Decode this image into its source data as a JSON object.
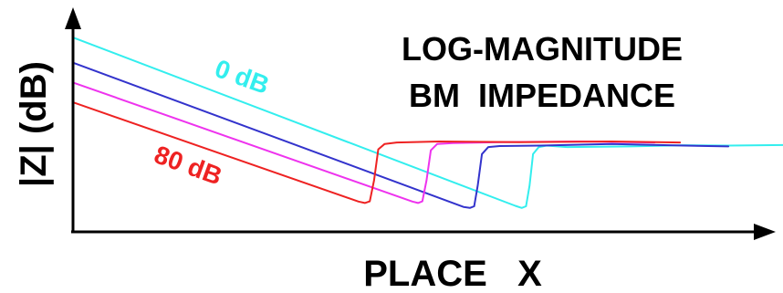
{
  "chart_data": {
    "type": "line",
    "title_lines": [
      "LOG-MAGNITUDE",
      "BM  IMPEDANCE"
    ],
    "xlabel": "PLACE   X",
    "ylabel": "|Z| (dB)",
    "xlim": [
      0,
      100
    ],
    "ylim": [
      0,
      100
    ],
    "grid": false,
    "colors": {
      "axis": "#000000",
      "s0": "#33eeee",
      "s1": "#3333cc",
      "s2": "#ee33ee",
      "s3": "#ee2222"
    },
    "series_labels": {
      "top": "0 dB",
      "bottom": "80 dB"
    },
    "series": [
      {
        "color": "#33eeee",
        "x": [
          0,
          62.3,
          63.2,
          63.8,
          64.3,
          64.8,
          65.6,
          66.7,
          69.6,
          78.5,
          86.1,
          92.3,
          100
        ],
        "y": [
          94.2,
          12.6,
          11.6,
          12.4,
          22.5,
          37.7,
          41.1,
          41.8,
          41.1,
          41.4,
          42.0,
          41.8,
          42.1
        ]
      },
      {
        "color": "#3333cc",
        "x": [
          0,
          55.0,
          55.9,
          56.5,
          57.0,
          57.6,
          58.5,
          60.1,
          65.8,
          75.9,
          86.1,
          92.3
        ],
        "y": [
          82.0,
          12.1,
          11.6,
          12.4,
          22.5,
          37.7,
          41.1,
          41.6,
          41.8,
          42.6,
          41.8,
          41.4
        ]
      },
      {
        "color": "#ee33ee",
        "x": [
          0,
          47.8,
          48.6,
          49.2,
          49.8,
          50.4,
          51.3,
          53.5,
          60.1,
          70.9,
          81.9
        ],
        "y": [
          72.4,
          14.7,
          14.0,
          14.8,
          25.0,
          39.5,
          42.6,
          43.0,
          43.5,
          43.8,
          43.3
        ]
      },
      {
        "color": "#ee2222",
        "x": [
          0,
          40.2,
          41.1,
          41.8,
          42.4,
          43.0,
          43.9,
          45.6,
          51.6,
          62.9,
          75.9,
          85.5
        ],
        "y": [
          62.8,
          14.7,
          14.0,
          14.8,
          25.0,
          40.0,
          42.6,
          43.3,
          43.8,
          43.5,
          43.8,
          43.3
        ]
      }
    ]
  }
}
